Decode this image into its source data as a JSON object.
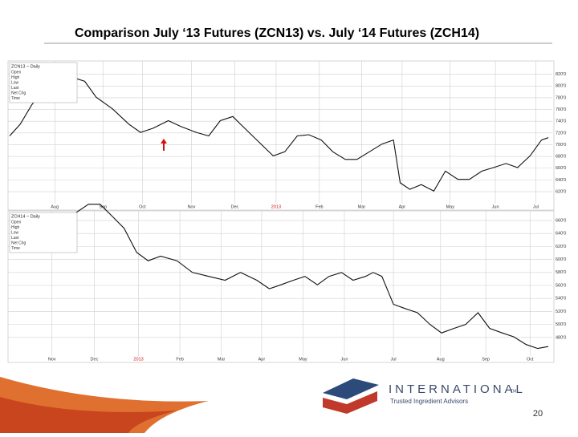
{
  "title": "Comparison July ‘13 Futures (ZCN13) vs. July ‘14 Futures (ZCH14)",
  "logo": {
    "name": "INTERNATIONAL",
    "tm": "TM",
    "tagline": "Trusted Ingredient Advisors"
  },
  "page_number": "20",
  "chart_data": [
    {
      "type": "line",
      "title": "ZCN13 ~ Daily",
      "info_fields": [
        "Open",
        "High",
        "Low",
        "Last",
        "Net Chg",
        "Time"
      ],
      "xlim": [
        0,
        56
      ],
      "ylim": [
        605,
        840
      ],
      "grid": true,
      "xticks": [
        {
          "value": 4.7,
          "label": "Aug"
        },
        {
          "value": 9.7,
          "label": "Sep"
        },
        {
          "value": 13.8,
          "label": "Oct"
        },
        {
          "value": 18.9,
          "label": "Nov"
        },
        {
          "value": 23.4,
          "label": "Dec"
        },
        {
          "value": 27.7,
          "label": "2013"
        },
        {
          "value": 32.2,
          "label": "Feb"
        },
        {
          "value": 36.6,
          "label": "Mar"
        },
        {
          "value": 40.8,
          "label": "Apr"
        },
        {
          "value": 45.8,
          "label": "May"
        },
        {
          "value": 50.5,
          "label": "Jun"
        },
        {
          "value": 54.7,
          "label": "Jul"
        }
      ],
      "yticks": [
        {
          "value": 820,
          "label": "820'0"
        },
        {
          "value": 800,
          "label": "800'0"
        },
        {
          "value": 780,
          "label": "780'0"
        },
        {
          "value": 760,
          "label": "760'0"
        },
        {
          "value": 740,
          "label": "740'0"
        },
        {
          "value": 720,
          "label": "720'0"
        },
        {
          "value": 700,
          "label": "700'0"
        },
        {
          "value": 680,
          "label": "680'0"
        },
        {
          "value": 660,
          "label": "660'0"
        },
        {
          "value": 640,
          "label": "640'0"
        },
        {
          "value": 620,
          "label": "620'0"
        }
      ],
      "x": [
        0,
        1.1,
        2.3,
        3.6,
        4.8,
        6.5,
        7.8,
        9.0,
        10.7,
        12.4,
        13.6,
        14.9,
        16.5,
        17.8,
        19.4,
        20.7,
        21.9,
        23.2,
        24.0,
        25.7,
        27.4,
        28.6,
        29.9,
        31.1,
        32.4,
        33.6,
        34.9,
        36.1,
        37.4,
        38.7,
        39.9,
        40.6,
        41.6,
        42.8,
        44.1,
        45.3,
        46.6,
        47.8,
        49.1,
        50.3,
        51.6,
        52.8,
        54.1,
        55.3,
        56
      ],
      "series": [
        {
          "color": "#111111",
          "values": [
            715,
            735,
            768,
            795,
            808,
            815,
            808,
            781,
            761,
            735,
            721,
            728,
            741,
            731,
            721,
            715,
            741,
            748,
            735,
            708,
            681,
            688,
            715,
            717,
            708,
            688,
            675,
            675,
            688,
            701,
            708,
            635,
            624,
            632,
            621,
            655,
            641,
            641,
            655,
            661,
            668,
            661,
            681,
            708,
            712
          ]
        }
      ]
    },
    {
      "type": "line",
      "title": "ZCH14 ~ Daily",
      "info_fields": [
        "Open",
        "High",
        "Low",
        "Last",
        "Net Chg",
        "Time"
      ],
      "xlim": [
        0,
        56
      ],
      "ylim": [
        444,
        676
      ],
      "grid": true,
      "xticks": [
        {
          "value": 4.4,
          "label": "Nov"
        },
        {
          "value": 8.8,
          "label": "Dec"
        },
        {
          "value": 13.4,
          "label": "2013"
        },
        {
          "value": 17.7,
          "label": "Feb"
        },
        {
          "value": 22.0,
          "label": "Mar"
        },
        {
          "value": 26.2,
          "label": "Apr"
        },
        {
          "value": 30.5,
          "label": "May"
        },
        {
          "value": 34.8,
          "label": "Jun"
        },
        {
          "value": 39.9,
          "label": "Jul"
        },
        {
          "value": 44.8,
          "label": "Aug"
        },
        {
          "value": 49.5,
          "label": "Sep"
        },
        {
          "value": 54.1,
          "label": "Oct"
        }
      ],
      "yticks": [
        {
          "value": 660,
          "label": "660'0"
        },
        {
          "value": 640,
          "label": "640'0"
        },
        {
          "value": 620,
          "label": "620'0"
        },
        {
          "value": 600,
          "label": "600'0"
        },
        {
          "value": 580,
          "label": "580'0"
        },
        {
          "value": 560,
          "label": "560'0"
        },
        {
          "value": 540,
          "label": "540'0"
        },
        {
          "value": 520,
          "label": "520'0"
        },
        {
          "value": 500,
          "label": "500'0"
        },
        {
          "value": 480,
          "label": "480'0"
        }
      ],
      "x": [
        6.9,
        8.2,
        9.4,
        10.7,
        11.9,
        13.2,
        14.4,
        15.7,
        17.4,
        19.0,
        20.7,
        22.4,
        24.0,
        25.7,
        27.0,
        28.2,
        29.5,
        30.7,
        32.0,
        33.2,
        34.5,
        35.7,
        37.0,
        37.8,
        38.7,
        39.9,
        41.2,
        42.4,
        43.7,
        44.9,
        46.2,
        47.4,
        48.7,
        49.9,
        51.2,
        52.4,
        53.7,
        54.9,
        56
      ],
      "series": [
        {
          "color": "#111111",
          "values": [
            672,
            685,
            685,
            666,
            648,
            611,
            598,
            605,
            598,
            580,
            574,
            568,
            580,
            568,
            555,
            561,
            568,
            574,
            561,
            574,
            580,
            568,
            574,
            580,
            574,
            531,
            524,
            518,
            500,
            487,
            494,
            500,
            518,
            494,
            487,
            481,
            469,
            463,
            466
          ]
        }
      ]
    }
  ]
}
